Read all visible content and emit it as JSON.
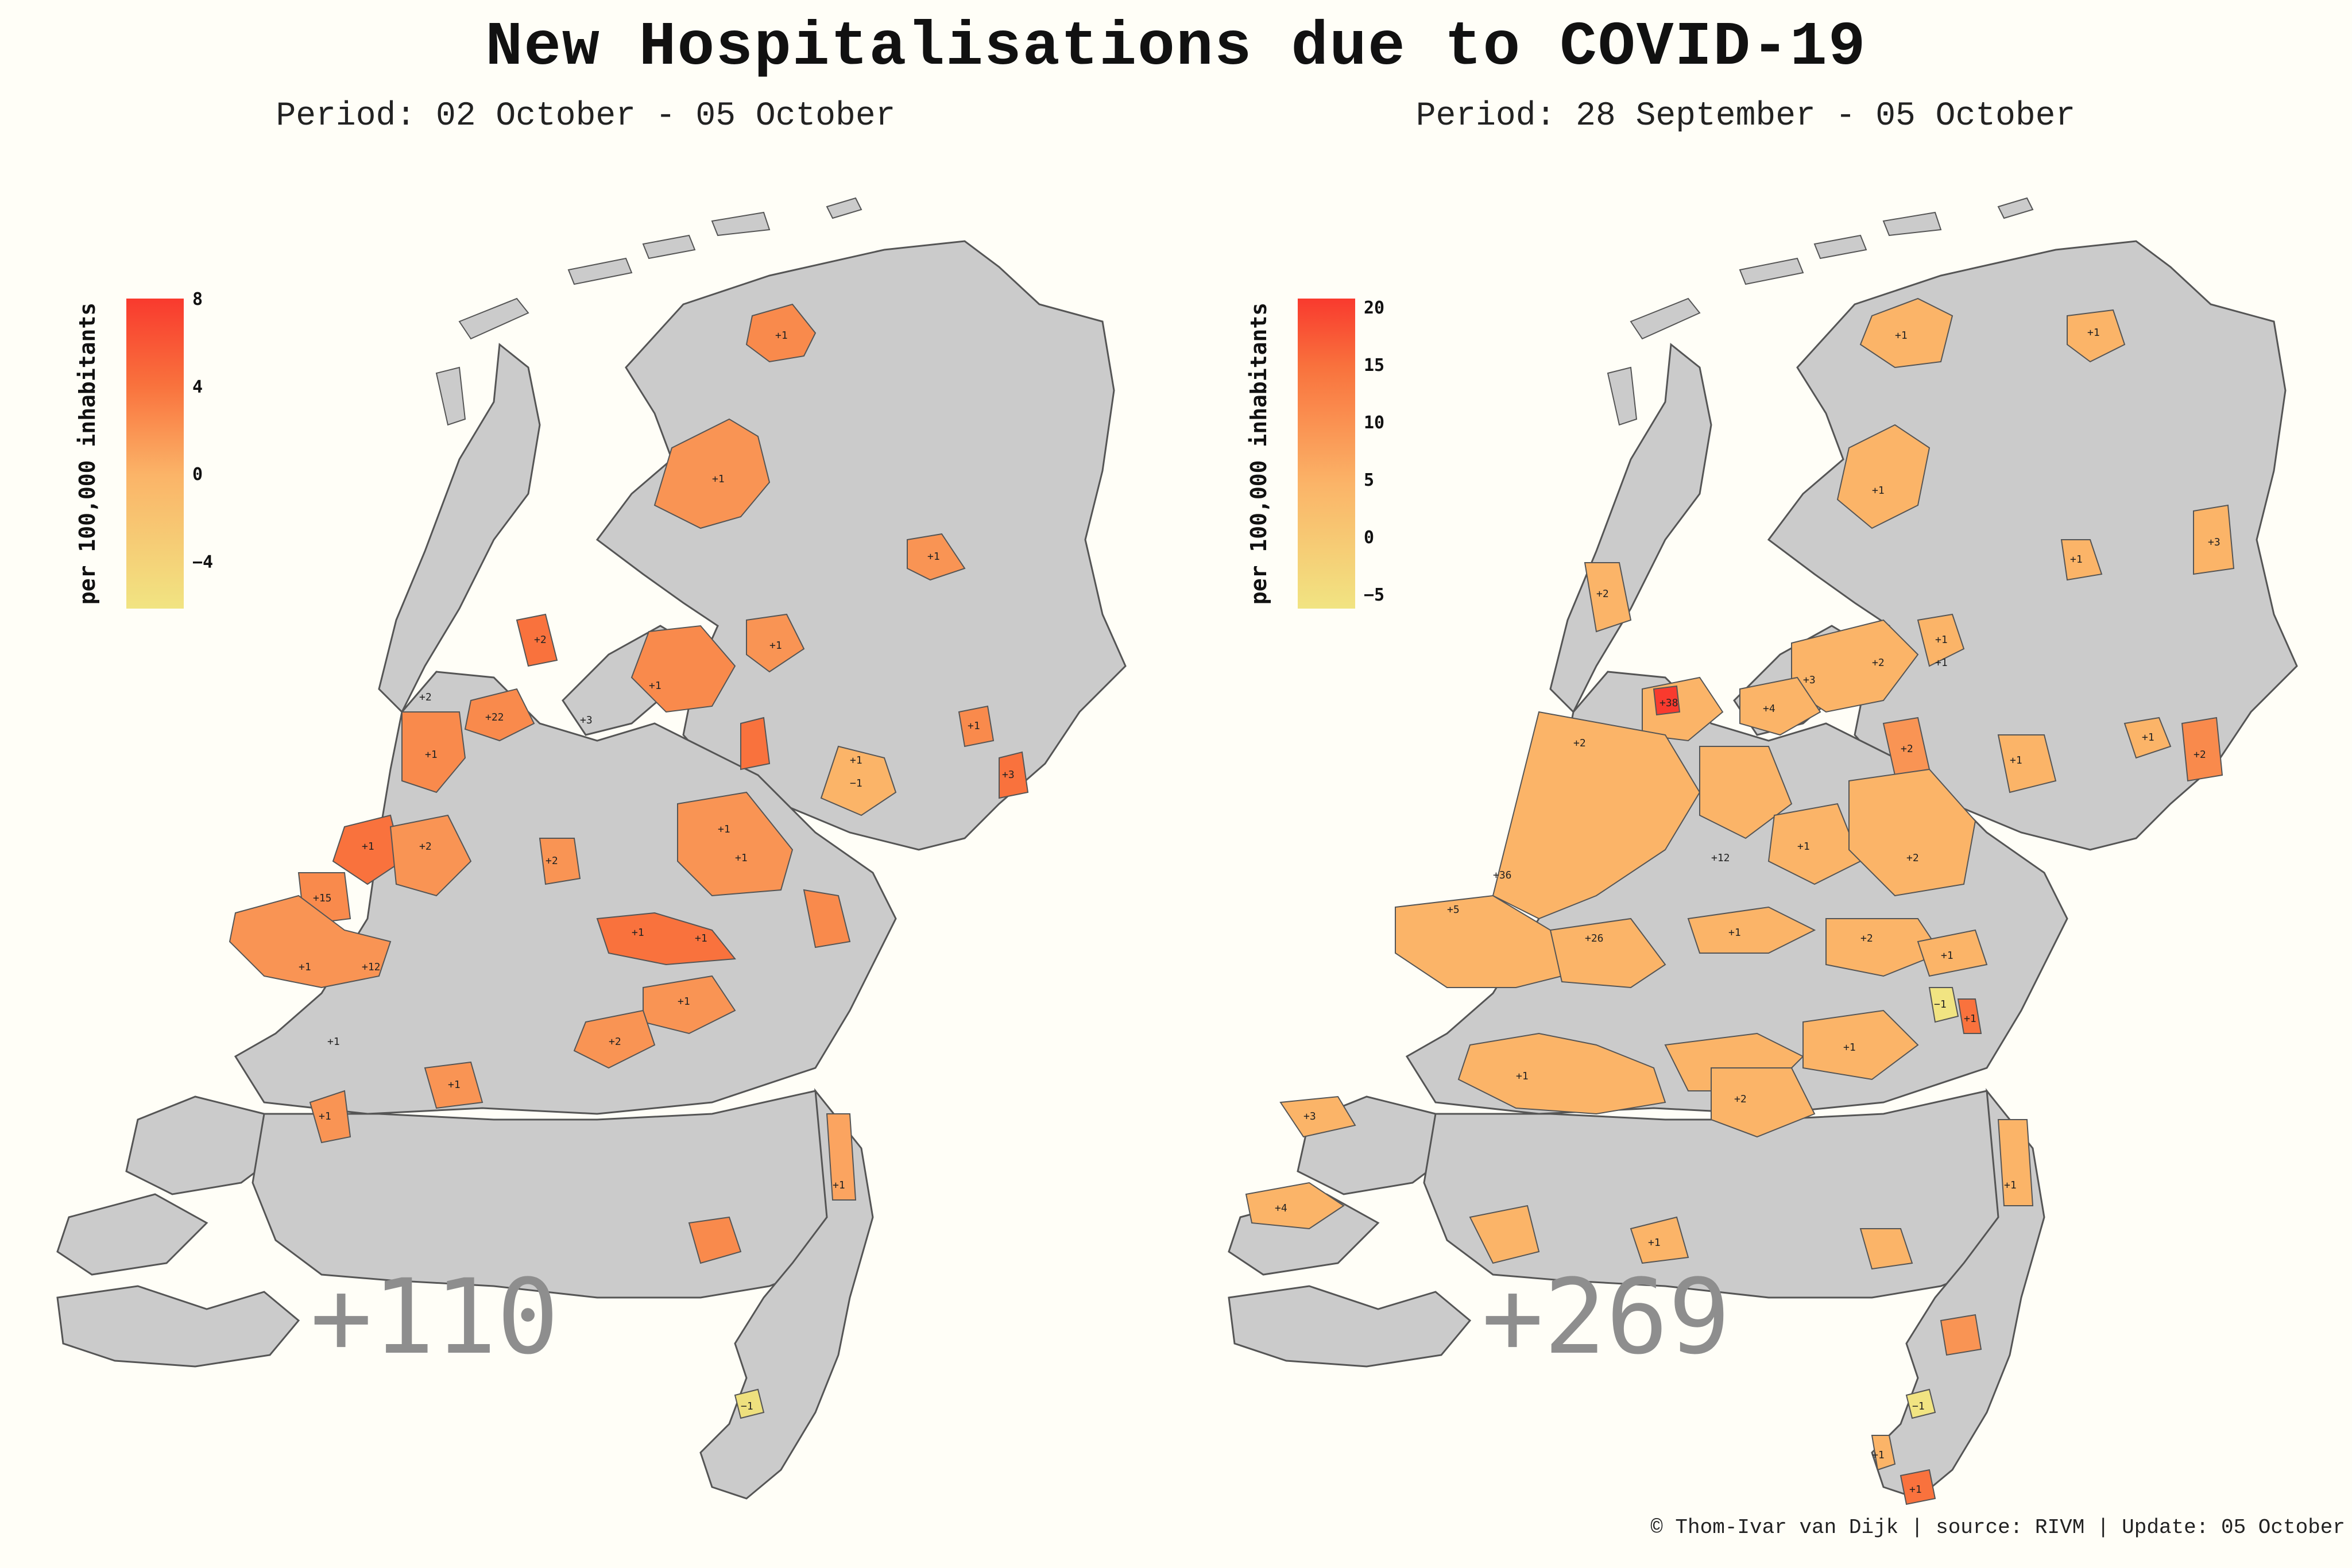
{
  "title": "New Hospitalisations due to COVID-19",
  "footer": "© Thom-Ivar van Dijk | source: RIVM | Update: 05 October",
  "colors": {
    "background": "#fffef7",
    "land": "#cbcbcb",
    "border": "#555555",
    "scale_low": "#f1e482",
    "scale_mid": "#fbb468",
    "scale_high": "#f93a2e"
  },
  "chart_data": [
    {
      "type": "choropleth",
      "subtitle": "Period: 02 October - 05 October",
      "legend_title": "per 100,000 inhabitants",
      "legend_ticks": [
        "8",
        "4",
        "0",
        "−4"
      ],
      "scale_range": [
        -6,
        8
      ],
      "total": "+110",
      "region_labels": [
        "+1",
        "+1",
        "+1",
        "+1",
        "+2",
        "+1",
        "+3",
        "+2",
        "+22",
        "+1",
        "+1",
        "+15",
        "+12",
        "+2",
        "+1",
        "+1",
        "+1",
        "+1",
        "+1",
        "−1",
        "+3",
        "+1",
        "+1",
        "+1",
        "+2",
        "+1",
        "+2",
        "+1",
        "+1",
        "+1",
        "−1"
      ]
    },
    {
      "type": "choropleth",
      "subtitle": "Period: 28 September - 05 October",
      "legend_title": "per 100,000 inhabitants",
      "legend_ticks": [
        "20",
        "15",
        "10",
        "5",
        "0",
        "−5"
      ],
      "scale_range": [
        -6,
        21
      ],
      "total": "+269",
      "region_labels": [
        "+1",
        "+1",
        "+1",
        "+1",
        "+1",
        "+3",
        "+2",
        "+2",
        "+38",
        "+4",
        "+3",
        "+2",
        "+1",
        "+2",
        "+1",
        "+1",
        "+36",
        "+5",
        "+26",
        "+12",
        "+2",
        "+1",
        "+2",
        "+1",
        "+2",
        "+1",
        "+1",
        "−1",
        "+1",
        "+4",
        "+3",
        "+2",
        "+1",
        "+1",
        "+1",
        "−1",
        "+1",
        "+1"
      ]
    }
  ]
}
